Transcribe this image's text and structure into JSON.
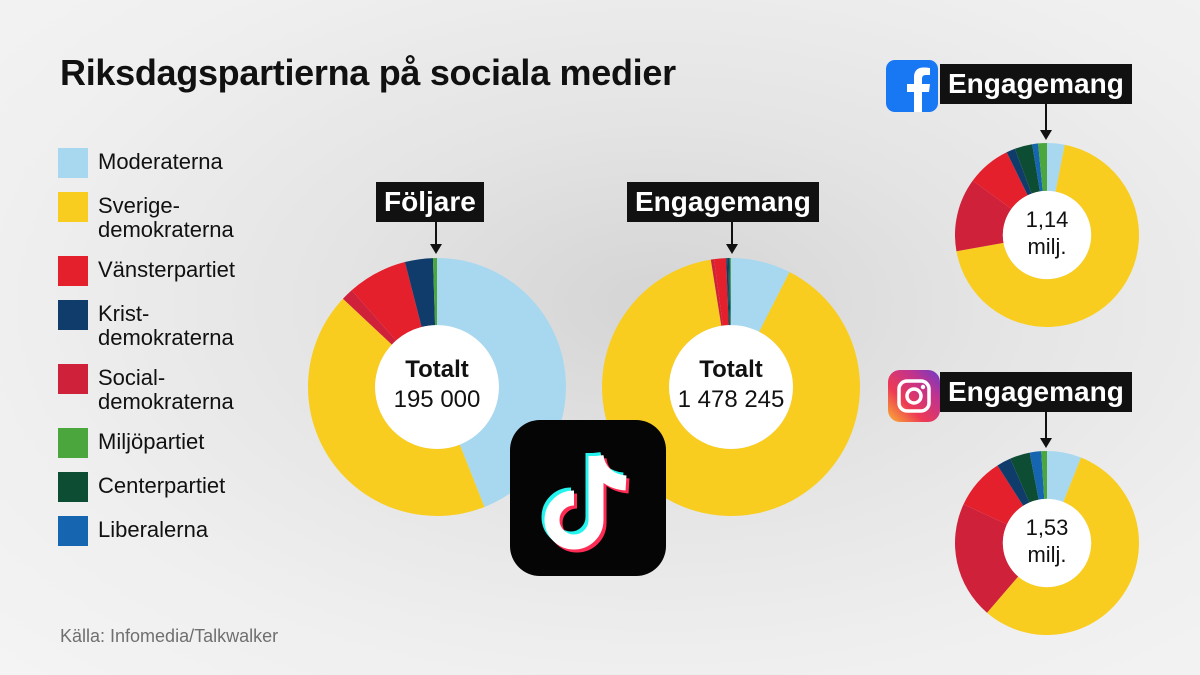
{
  "title": "Riksdagspartierna på sociala medier",
  "source": "Källa: Infomedia/Talkwalker",
  "legend": [
    {
      "label": "Moderaterna",
      "color": "#a8d8f0"
    },
    {
      "label": "Sverige-\ndemokraterna",
      "color": "#f8cd1f"
    },
    {
      "label": "Vänsterpartiet",
      "color": "#e4202d"
    },
    {
      "label": "Krist-\ndemokraterna",
      "color": "#103c6b"
    },
    {
      "label": "Social-\ndemokraterna",
      "color": "#cf2139"
    },
    {
      "label": "Miljöpartiet",
      "color": "#4ba63d"
    },
    {
      "label": "Centerpartiet",
      "color": "#0d4d34"
    },
    {
      "label": "Liberalerna",
      "color": "#1565b0"
    }
  ],
  "icons": {
    "tiktok": "tiktok-icon",
    "facebook": "facebook-icon",
    "instagram": "instagram-icon"
  },
  "chart_data": [
    {
      "type": "pie",
      "platform": "TikTok",
      "title": "Följare",
      "center_line1": "Totalt",
      "center_line2": "195 000",
      "categories": [
        "Moderaterna",
        "Sverigedemokraterna",
        "Vänsterpartiet",
        "Kristdemokraterna",
        "Socialdemokraterna",
        "Miljöpartiet",
        "Centerpartiet",
        "Liberalerna"
      ],
      "values": [
        44,
        43,
        7.5,
        3.5,
        1.5,
        0.5,
        0,
        0
      ]
    },
    {
      "type": "pie",
      "platform": "TikTok",
      "title": "Engagemang",
      "center_line1": "Totalt",
      "center_line2": "1 478 245",
      "categories": [
        "Moderaterna",
        "Sverigedemokraterna",
        "Vänsterpartiet",
        "Kristdemokraterna",
        "Socialdemokraterna",
        "Miljöpartiet",
        "Centerpartiet",
        "Liberalerna"
      ],
      "values": [
        7.5,
        90,
        1.5,
        0.2,
        0.4,
        0.1,
        0.2,
        0.1
      ]
    },
    {
      "type": "pie",
      "platform": "Facebook",
      "title": "Engagemang",
      "center_line1": "1,14",
      "center_line2": "milj.",
      "categories": [
        "Moderaterna",
        "Sverigedemokraterna",
        "Vänsterpartiet",
        "Kristdemokraterna",
        "Socialdemokraterna",
        "Miljöpartiet",
        "Centerpartiet",
        "Liberalerna"
      ],
      "values": [
        3,
        67,
        7.5,
        1.5,
        12.5,
        1.5,
        3,
        1
      ]
    },
    {
      "type": "pie",
      "platform": "Instagram",
      "title": "Engagemang",
      "center_line1": "1,53",
      "center_line2": "milj.",
      "categories": [
        "Moderaterna",
        "Sverigedemokraterna",
        "Vänsterpartiet",
        "Kristdemokraterna",
        "Socialdemokraterna",
        "Miljöpartiet",
        "Centerpartiet",
        "Liberalerna"
      ],
      "values": [
        6,
        55,
        9,
        2.5,
        20.5,
        1,
        3.5,
        2
      ]
    }
  ]
}
